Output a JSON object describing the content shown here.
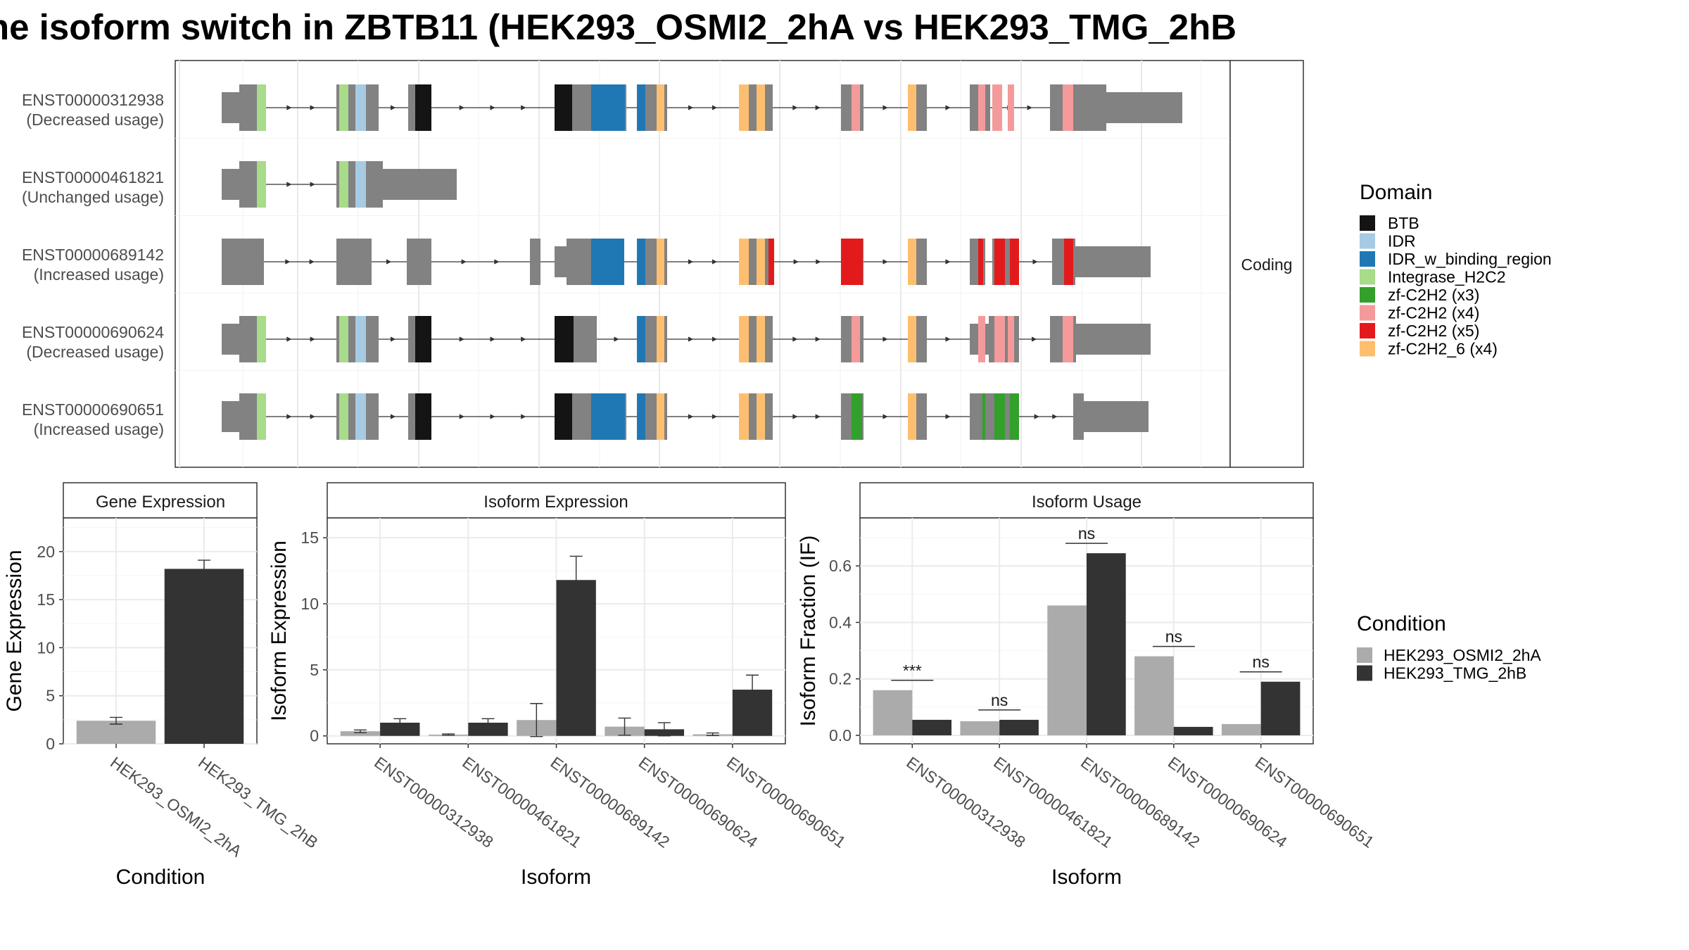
{
  "title": "ne isoform switch in ZBTB11 (HEK293_OSMI2_2hA vs HEK293_TMG_2hB",
  "transcript_panel": {
    "facet_label": "Coding",
    "transcripts": [
      {
        "id": "ENST00000312938",
        "usage": "(Decreased usage)"
      },
      {
        "id": "ENST00000461821",
        "usage": "(Unchanged usage)"
      },
      {
        "id": "ENST00000689142",
        "usage": "(Increased usage)"
      },
      {
        "id": "ENST00000690624",
        "usage": "(Decreased usage)"
      },
      {
        "id": "ENST00000690651",
        "usage": "(Increased usage)"
      }
    ]
  },
  "domain_legend": {
    "title": "Domain",
    "items": [
      {
        "label": "BTB",
        "color": "#141414"
      },
      {
        "label": "IDR",
        "color": "#a6cbe3"
      },
      {
        "label": "IDR_w_binding_region",
        "color": "#1f78b4"
      },
      {
        "label": "Integrase_H2C2",
        "color": "#a8db8a"
      },
      {
        "label": "zf-C2H2 (x3)",
        "color": "#33a02c"
      },
      {
        "label": "zf-C2H2 (x4)",
        "color": "#f59a9a"
      },
      {
        "label": "zf-C2H2 (x5)",
        "color": "#e31a1c"
      },
      {
        "label": "zf-C2H2_6 (x4)",
        "color": "#fdbf6f"
      }
    ]
  },
  "condition_legend": {
    "title": "Condition",
    "items": [
      {
        "label": "HEK293_OSMI2_2hA",
        "color": "#ababab"
      },
      {
        "label": "HEK293_TMG_2hB",
        "color": "#333333"
      }
    ]
  },
  "chart_data": [
    {
      "type": "bar",
      "title": "Gene Expression",
      "xlabel": "Condition",
      "ylabel": "Gene Expression",
      "categories": [
        "HEK293_OSMI2_2hA",
        "HEK293_TMG_2hB"
      ],
      "values": [
        2.4,
        18.2
      ],
      "errors": [
        0.35,
        0.9
      ],
      "ylim": [
        0,
        23.5
      ],
      "yticks": [
        "0",
        "5",
        "10",
        "15",
        "20"
      ]
    },
    {
      "type": "bar",
      "title": "Isoform Expression",
      "xlabel": "Isoform",
      "ylabel": "Isoform Expression",
      "categories": [
        "ENST00000312938",
        "ENST00000461821",
        "ENST00000689142",
        "ENST00000690624",
        "ENST00000690651"
      ],
      "series": [
        {
          "name": "HEK293_OSMI2_2hA",
          "values": [
            0.35,
            0.1,
            1.2,
            0.7,
            0.12
          ],
          "errors": [
            0.1,
            0.05,
            1.25,
            0.65,
            0.1
          ]
        },
        {
          "name": "HEK293_TMG_2hB",
          "values": [
            1.0,
            1.0,
            11.8,
            0.5,
            3.5
          ],
          "errors": [
            0.3,
            0.3,
            1.8,
            0.5,
            1.1
          ]
        }
      ],
      "ylim": [
        -0.6,
        16.5
      ],
      "yticks": [
        "0",
        "5",
        "10",
        "15"
      ]
    },
    {
      "type": "bar",
      "title": "Isoform Usage",
      "xlabel": "Isoform",
      "ylabel": "Isoform Fraction (IF)",
      "categories": [
        "ENST00000312938",
        "ENST00000461821",
        "ENST00000689142",
        "ENST00000690624",
        "ENST00000690651"
      ],
      "series": [
        {
          "name": "HEK293_OSMI2_2hA",
          "values": [
            0.16,
            0.05,
            0.46,
            0.28,
            0.04
          ]
        },
        {
          "name": "HEK293_TMG_2hB",
          "values": [
            0.055,
            0.055,
            0.645,
            0.03,
            0.19
          ]
        }
      ],
      "significance": [
        "***",
        "ns",
        "ns",
        "ns",
        "ns"
      ],
      "ylim": [
        -0.03,
        0.77
      ],
      "yticks": [
        "0.0",
        "0.2",
        "0.4",
        "0.6"
      ]
    }
  ]
}
